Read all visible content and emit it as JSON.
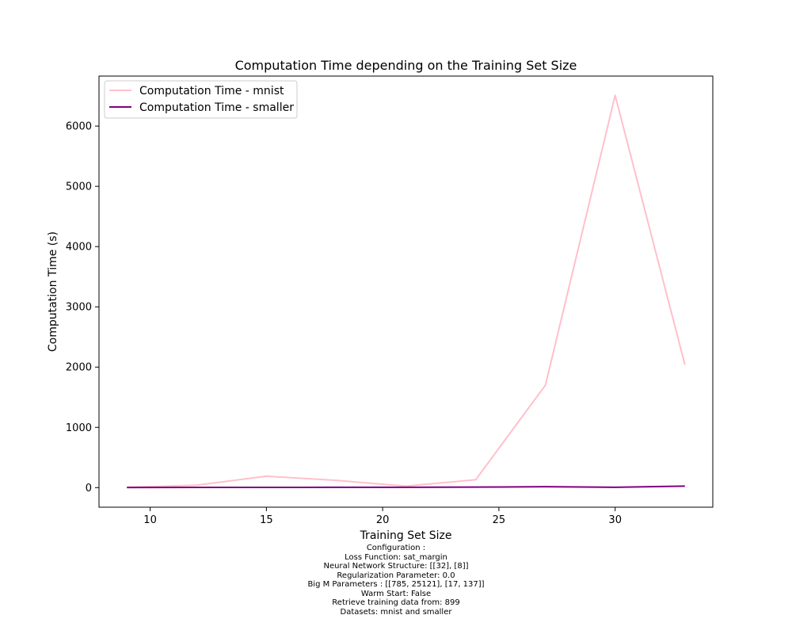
{
  "chart_data": {
    "type": "line",
    "title": "Computation Time depending on the Training Set Size",
    "xlabel": "Training Set Size",
    "ylabel": "Computation Time (s)",
    "xlim": [
      7.8,
      34.2
    ],
    "ylim": [
      -325,
      6830
    ],
    "xticks": [
      10,
      15,
      20,
      25,
      30
    ],
    "yticks": [
      0,
      1000,
      2000,
      3000,
      4000,
      5000,
      6000
    ],
    "legend_position": "upper-left",
    "grid": false,
    "series": [
      {
        "name": "Computation Time - mnist",
        "color": "#ffc0cb",
        "x": [
          9,
          12,
          15,
          18,
          21,
          24,
          27,
          30,
          33
        ],
        "y": [
          5,
          40,
          190,
          120,
          25,
          130,
          1700,
          6510,
          2040
        ]
      },
      {
        "name": "Computation Time - smaller",
        "color": "#800080",
        "x": [
          9,
          12,
          15,
          18,
          21,
          24,
          27,
          30,
          33
        ],
        "y": [
          2,
          3,
          4,
          5,
          6,
          8,
          15,
          5,
          25
        ]
      }
    ]
  },
  "caption": {
    "lines": [
      "Configuration :",
      "Loss Function: sat_margin",
      "Neural Network Structure: [[32], [8]]",
      "Regularization Parameter: 0.0",
      "Big M Parameters : [[785, 25121], [17, 137]]",
      "Warm Start: False",
      "Retrieve training data from: 899",
      "Datasets: mnist and smaller"
    ]
  }
}
